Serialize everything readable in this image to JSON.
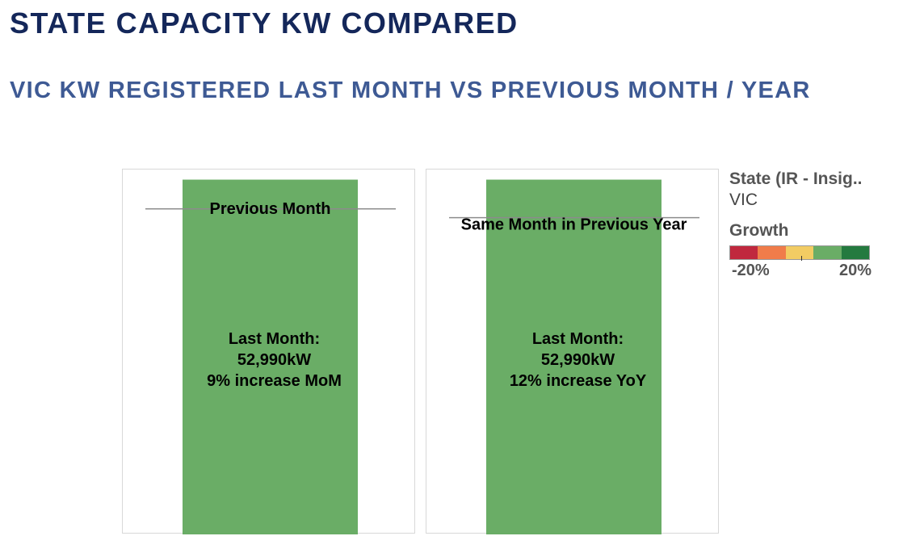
{
  "page": {
    "title": "STATE CAPACITY KW COMPARED",
    "subtitle": "VIC KW REGISTERED LAST MONTH VS PREVIOUS MONTH / YEAR"
  },
  "legend": {
    "state_title": "State (IR - Insig..",
    "state_value": "VIC",
    "growth_title": "Growth",
    "growth_min_label": "-20%",
    "growth_max_label": "20%",
    "growth_colors": [
      "#c0283e",
      "#f07c4a",
      "#f2cc63",
      "#6aad66",
      "#247a3f"
    ]
  },
  "chart_data": [
    {
      "type": "bar",
      "categories": [
        "VIC"
      ],
      "values": [
        52990
      ],
      "reference_line": {
        "label": "Previous Month",
        "value": 48615
      },
      "bar_label": [
        "Last Month:",
        "52,990kW",
        "9% increase MoM"
      ],
      "growth": 0.09,
      "bar_color": "#6aad66",
      "ylim": [
        0,
        54500
      ]
    },
    {
      "type": "bar",
      "categories": [
        "VIC"
      ],
      "values": [
        52990
      ],
      "reference_line": {
        "label": "Same Month in Previous Year",
        "value": 47312
      },
      "bar_label": [
        "Last Month:",
        "52,990kW",
        "12% increase YoY"
      ],
      "growth": 0.12,
      "bar_color": "#6aad66",
      "ylim": [
        0,
        54500
      ]
    }
  ]
}
